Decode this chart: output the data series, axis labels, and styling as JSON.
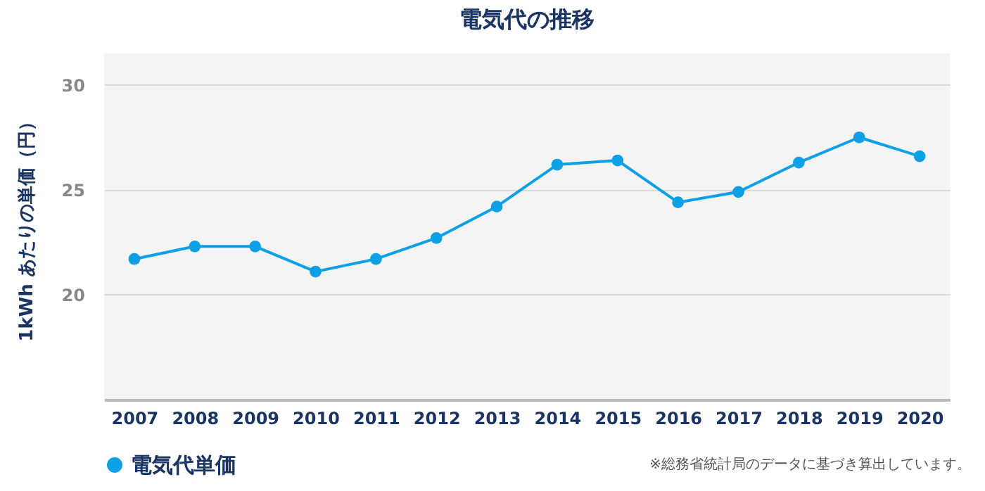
{
  "chart_data": {
    "type": "line",
    "title": "電気代の推移",
    "ylabel": "1kWh あたりの単価（円）",
    "categories": [
      "2007",
      "2008",
      "2009",
      "2010",
      "2011",
      "2012",
      "2013",
      "2014",
      "2015",
      "2016",
      "2017",
      "2018",
      "2019",
      "2020"
    ],
    "series": [
      {
        "name": "電気代単価",
        "color": "#0ea0e6",
        "values": [
          21.7,
          22.3,
          22.3,
          21.1,
          21.7,
          22.7,
          24.2,
          26.2,
          26.4,
          24.4,
          24.9,
          26.3,
          27.5,
          26.6
        ]
      }
    ],
    "ylim": [
      15,
      31.5
    ],
    "yticks": [
      20,
      25,
      30
    ],
    "grid": "y",
    "legend": "bottom",
    "marker": "circle",
    "line_style": "solid",
    "annotations": [
      "※総務省統計局のデータに基づき算出しています。"
    ]
  }
}
